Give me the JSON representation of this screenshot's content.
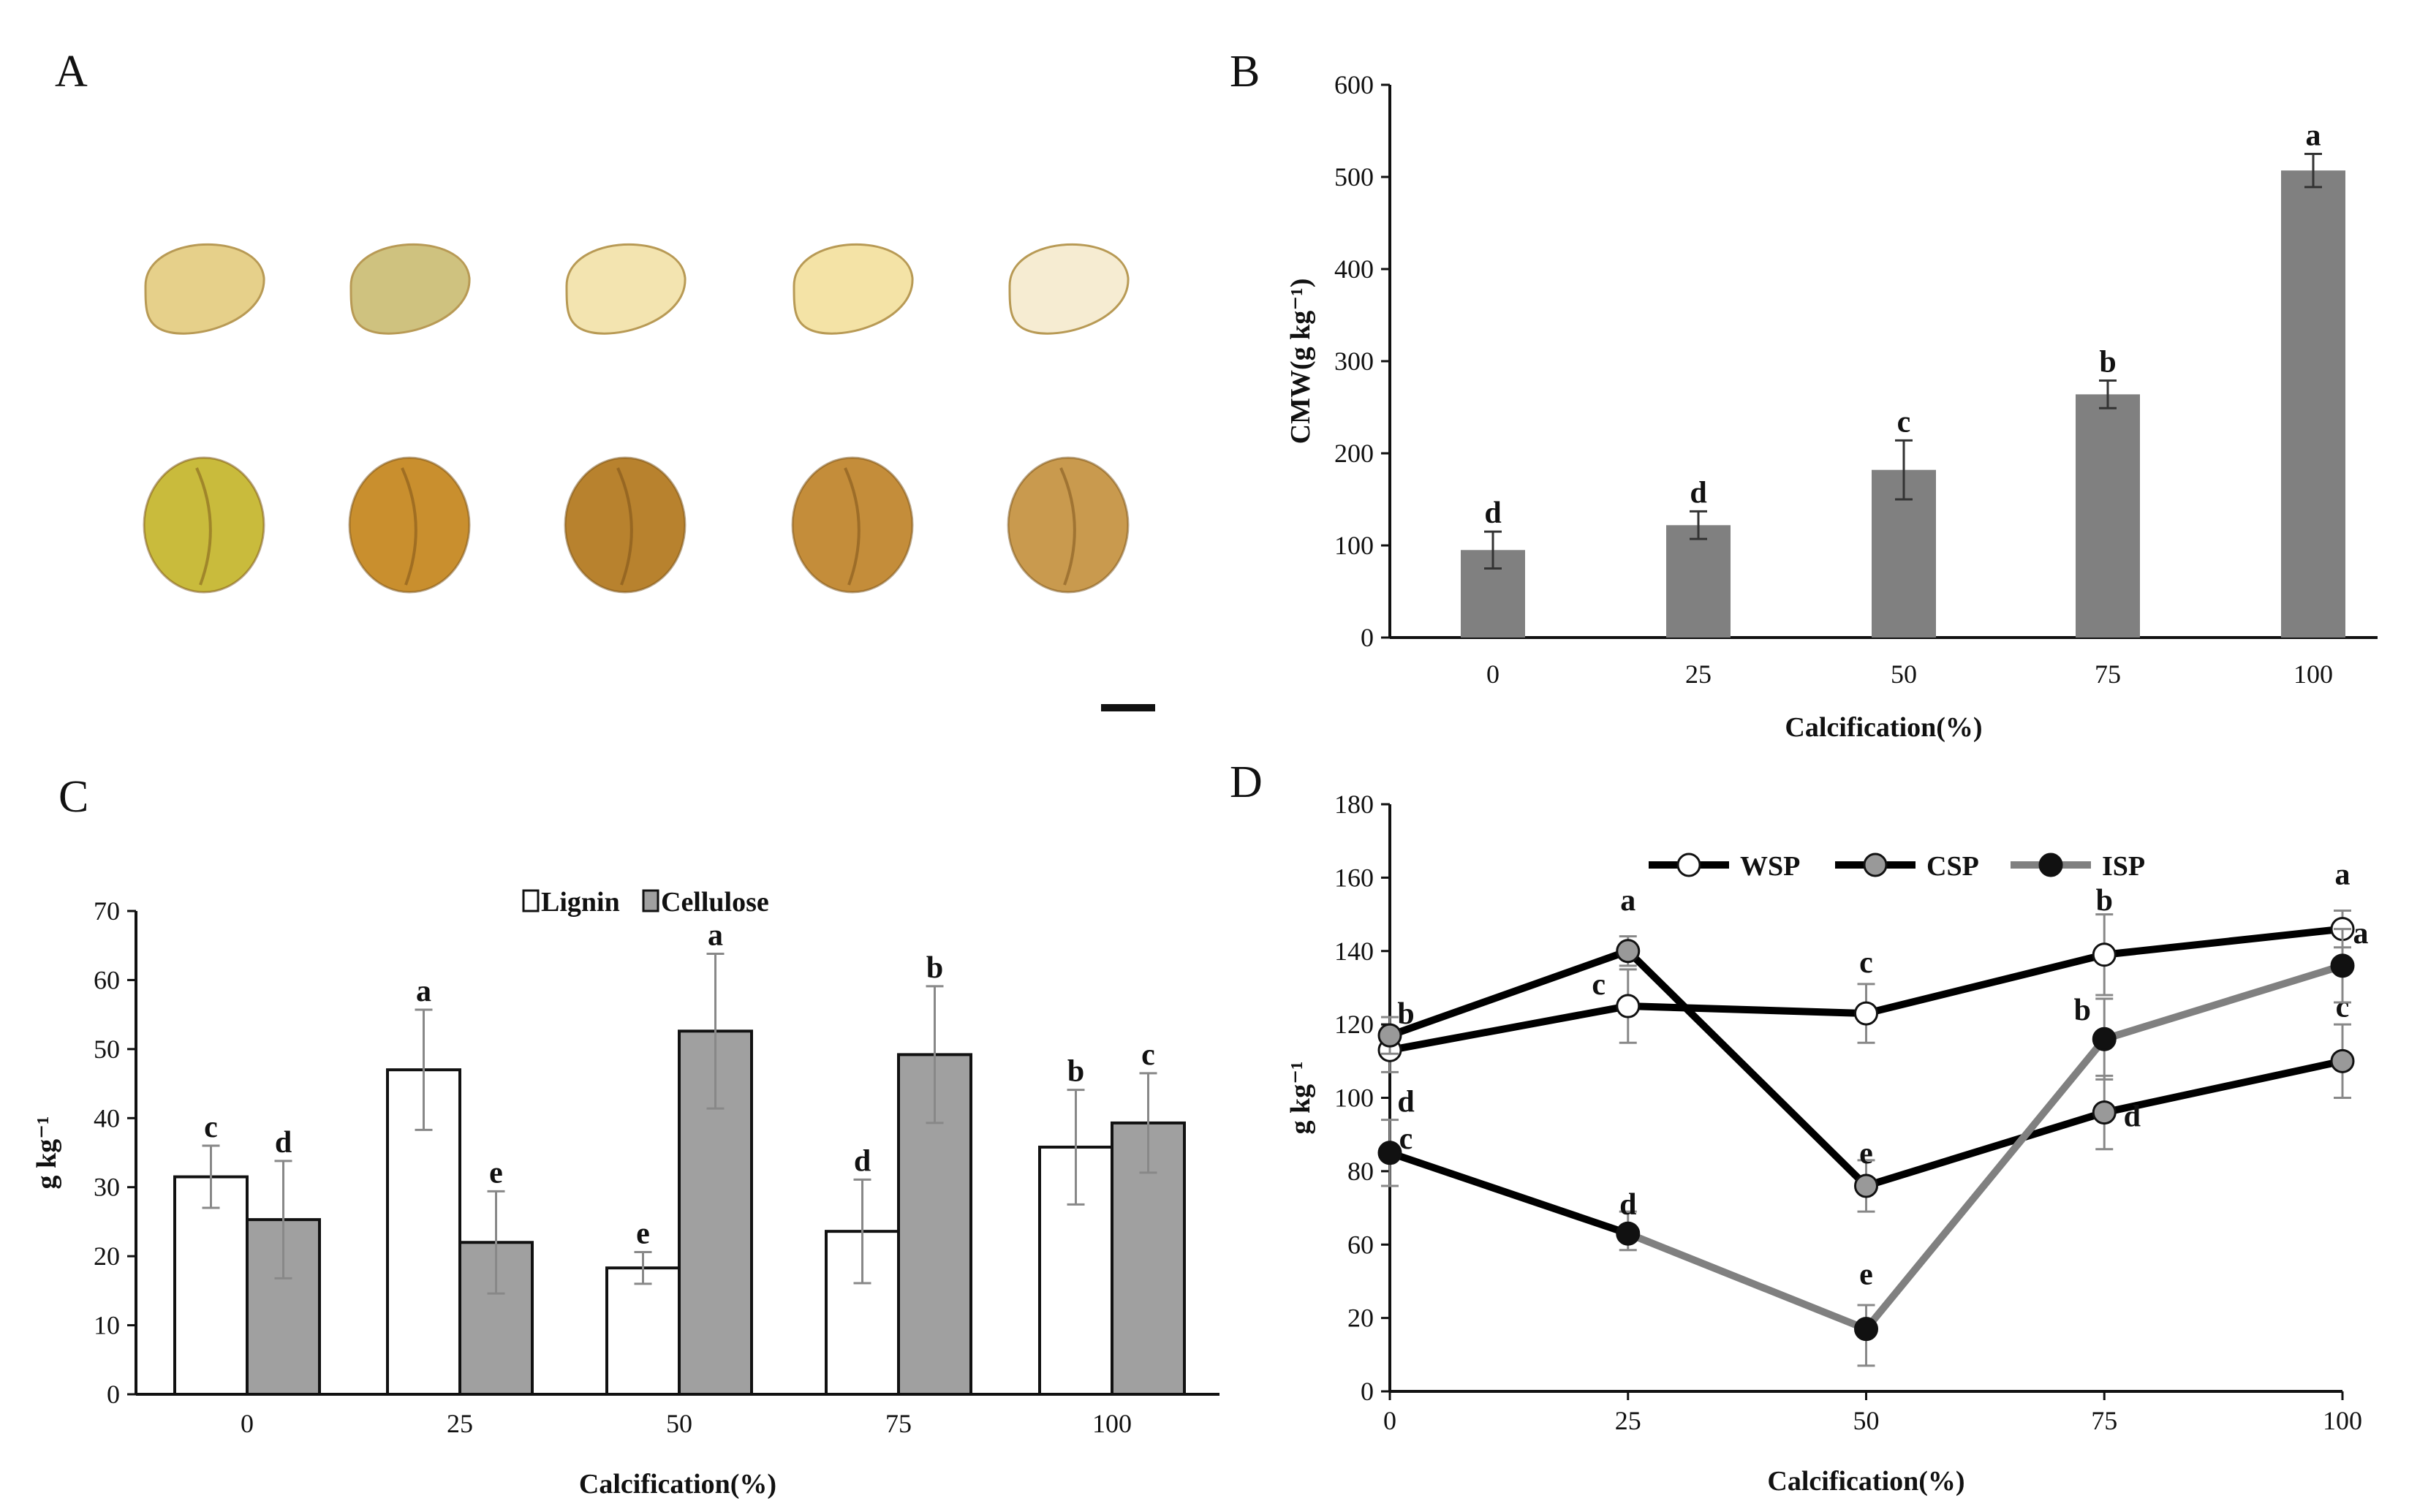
{
  "panels": {
    "a": "A",
    "b": "B",
    "c": "C",
    "d": "D"
  },
  "photo_panel": {
    "rows": [
      "kernel-cross-section",
      "whole-kernel"
    ],
    "columns": 5,
    "colors_top": [
      "#e6d08a",
      "#cfc27f",
      "#f3e4b0",
      "#f4e3a6",
      "#f6ecd2"
    ],
    "colors_bottom": [
      "#c9bb3c",
      "#c98f2e",
      "#b8822e",
      "#c48d3a",
      "#c99a4e"
    ]
  },
  "chart_data": [
    {
      "id": "B",
      "type": "bar",
      "categories": [
        "0",
        "25",
        "50",
        "75",
        "100"
      ],
      "series": [
        {
          "name": "CMW",
          "values": [
            95,
            122,
            182,
            264,
            507
          ],
          "errors": [
            20,
            15,
            32,
            15,
            18
          ],
          "letters": [
            "d",
            "d",
            "c",
            "b",
            "a"
          ],
          "color": "#808080"
        }
      ],
      "xlabel": "Calcification(%)",
      "ylabel": "CMW(g kg⁻¹)",
      "ylim": [
        0,
        600
      ],
      "yticks": [
        "0",
        "100",
        "200",
        "300",
        "400",
        "500",
        "600"
      ],
      "grid": false
    },
    {
      "id": "C",
      "type": "bar",
      "categories": [
        "0",
        "25",
        "50",
        "75",
        "100"
      ],
      "series": [
        {
          "name": "Lignin",
          "values": [
            31.5,
            47,
            18.3,
            23.6,
            35.8
          ],
          "errors": [
            4.5,
            8.7,
            2.3,
            7.5,
            8.3
          ],
          "letters": [
            "c",
            "a",
            "e",
            "d",
            "b"
          ],
          "color": "#ffffff"
        },
        {
          "name": "Cellulose",
          "values": [
            25.3,
            22,
            52.6,
            49.2,
            39.3
          ],
          "errors": [
            8.5,
            7.4,
            11.2,
            9.9,
            7.2
          ],
          "letters": [
            "d",
            "e",
            "a",
            "b",
            "c"
          ],
          "color": "#a0a0a0"
        }
      ],
      "legend": {
        "lignin": "Lignin",
        "cellulose": "Cellulose",
        "placement": "top-center"
      },
      "xlabel": "Calcification(%)",
      "ylabel": "g kg⁻¹",
      "ylim": [
        0,
        70
      ],
      "yticks": [
        "0",
        "10",
        "20",
        "30",
        "40",
        "50",
        "60",
        "70"
      ],
      "grid": false
    },
    {
      "id": "D",
      "type": "line",
      "x": [
        0,
        25,
        50,
        75,
        100
      ],
      "xticks": [
        "0",
        "25",
        "50",
        "75",
        "100"
      ],
      "series": [
        {
          "name": "WSP",
          "values": [
            113,
            125,
            123,
            139,
            146
          ],
          "errors": [
            6,
            10,
            8,
            11,
            5
          ],
          "letters": [
            "d",
            "c",
            "c",
            "b",
            "a"
          ],
          "marker": "#ffffff",
          "line": "#000000"
        },
        {
          "name": "CSP",
          "values": [
            117,
            140,
            76,
            96,
            110
          ],
          "errors": [
            5,
            4,
            7,
            10,
            10
          ],
          "letters": [
            "b",
            "a",
            "e",
            "d",
            "c"
          ],
          "marker": "#999999",
          "line": "#000000"
        },
        {
          "name": "ISP",
          "values": [
            85,
            63,
            17,
            116,
            136
          ],
          "errors": [
            9,
            6,
            10,
            11,
            10
          ],
          "letters": [
            "c",
            "d",
            "e",
            "b",
            "a"
          ],
          "marker": "#111111",
          "line": "#808080"
        }
      ],
      "legend": {
        "wsp": "WSP",
        "csp": "CSP",
        "isp": "ISP",
        "placement": "top-center"
      },
      "xlabel": "Calcification(%)",
      "ylabel": "g kg⁻¹",
      "ylim": [
        0,
        180
      ],
      "yticks": [
        "0",
        "20",
        "60",
        "80",
        "100",
        "120",
        "140",
        "160",
        "180"
      ],
      "grid": false
    }
  ]
}
